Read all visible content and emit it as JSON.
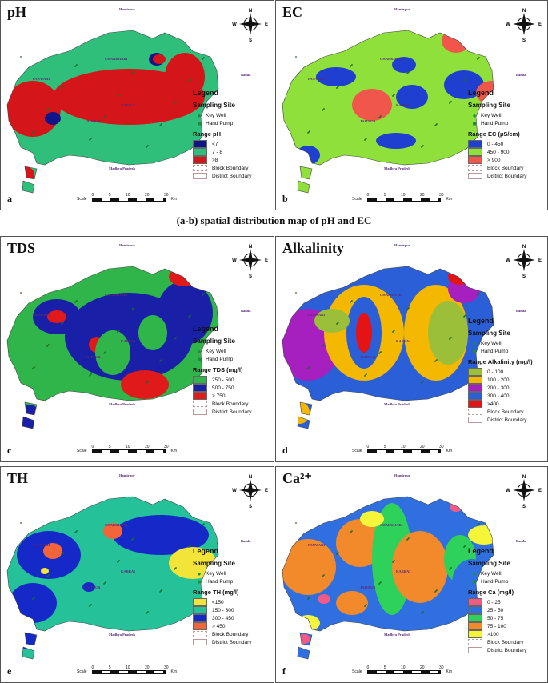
{
  "caption": "(a-b)  spatial distribution map of pH and EC",
  "legend_title": "Legend",
  "sampling_title": "Sampling Site",
  "key_well": "Key Well",
  "hand_pump": "Hand Pump",
  "block_boundary": "Block Boundary",
  "district_boundary": "District Boundary",
  "scale_label": "Scale",
  "scale_ticks": [
    "0",
    "5",
    "10",
    "20",
    "30"
  ],
  "scale_unit": "Km",
  "compass": {
    "n": "N",
    "s": "S",
    "e": "E",
    "w": "W"
  },
  "places": {
    "north": "Hamirpur",
    "south": "Madhya Pradesh",
    "east": "Banda",
    "town1": "CHARKHARI",
    "town2": "PANWARI",
    "town3": "JAITPUR",
    "town4": "KABRAI"
  },
  "panels": [
    {
      "id": "ph",
      "title": "pH",
      "letter": "a",
      "range_title": "Range pH",
      "ranges": [
        {
          "label": "<7",
          "color": "#10158a"
        },
        {
          "label": "7 - 8",
          "color": "#2fbf7a"
        },
        {
          "label": ">8",
          "color": "#d4161b"
        }
      ]
    },
    {
      "id": "ec",
      "title": "EC",
      "letter": "b",
      "range_title": "Range EC (µS/cm)",
      "ranges": [
        {
          "label": "0 - 450",
          "color": "#1f3fd1"
        },
        {
          "label": "450 - 900",
          "color": "#8fe03a"
        },
        {
          "label": "> 900",
          "color": "#f0564a"
        }
      ]
    },
    {
      "id": "tds",
      "title": "TDS",
      "letter": "c",
      "range_title": "Range TDS (mg/l)",
      "ranges": [
        {
          "label": "250 - 500",
          "color": "#2fb54a"
        },
        {
          "label": "500 - 750",
          "color": "#1a1fa8"
        },
        {
          "label": "> 750",
          "color": "#e0191b"
        }
      ]
    },
    {
      "id": "alk",
      "title": "Alkalinity",
      "letter": "d",
      "range_title": "Range Alkalinity  (mg/l)",
      "ranges": [
        {
          "label": "0 - 100",
          "color": "#9cbf3a"
        },
        {
          "label": "100 - 200",
          "color": "#f5b800"
        },
        {
          "label": "200 - 300",
          "color": "#a61fbf"
        },
        {
          "label": "300 - 400",
          "color": "#2a5fd8"
        },
        {
          "label": ">400",
          "color": "#e51414"
        }
      ]
    },
    {
      "id": "th",
      "title": "TH",
      "letter": "e",
      "range_title": "Range TH (mg/l)",
      "ranges": [
        {
          "label": "<150",
          "color": "#f3e43a"
        },
        {
          "label": "150 - 300",
          "color": "#25c29a"
        },
        {
          "label": "300 - 450",
          "color": "#1429c8"
        },
        {
          "label": "> 450",
          "color": "#f2643a"
        }
      ]
    },
    {
      "id": "ca",
      "title": "Ca²⁺",
      "letter": "f",
      "range_title": "Range Ca (mg/l)",
      "ranges": [
        {
          "label": "0 - 25",
          "color": "#f25a86"
        },
        {
          "label": "25 - 50",
          "color": "#2f6fe0"
        },
        {
          "label": "50 - 75",
          "color": "#2ed15a"
        },
        {
          "label": "75 - 100",
          "color": "#f2892a"
        },
        {
          "label": ">100",
          "color": "#f5f53a"
        }
      ]
    }
  ]
}
